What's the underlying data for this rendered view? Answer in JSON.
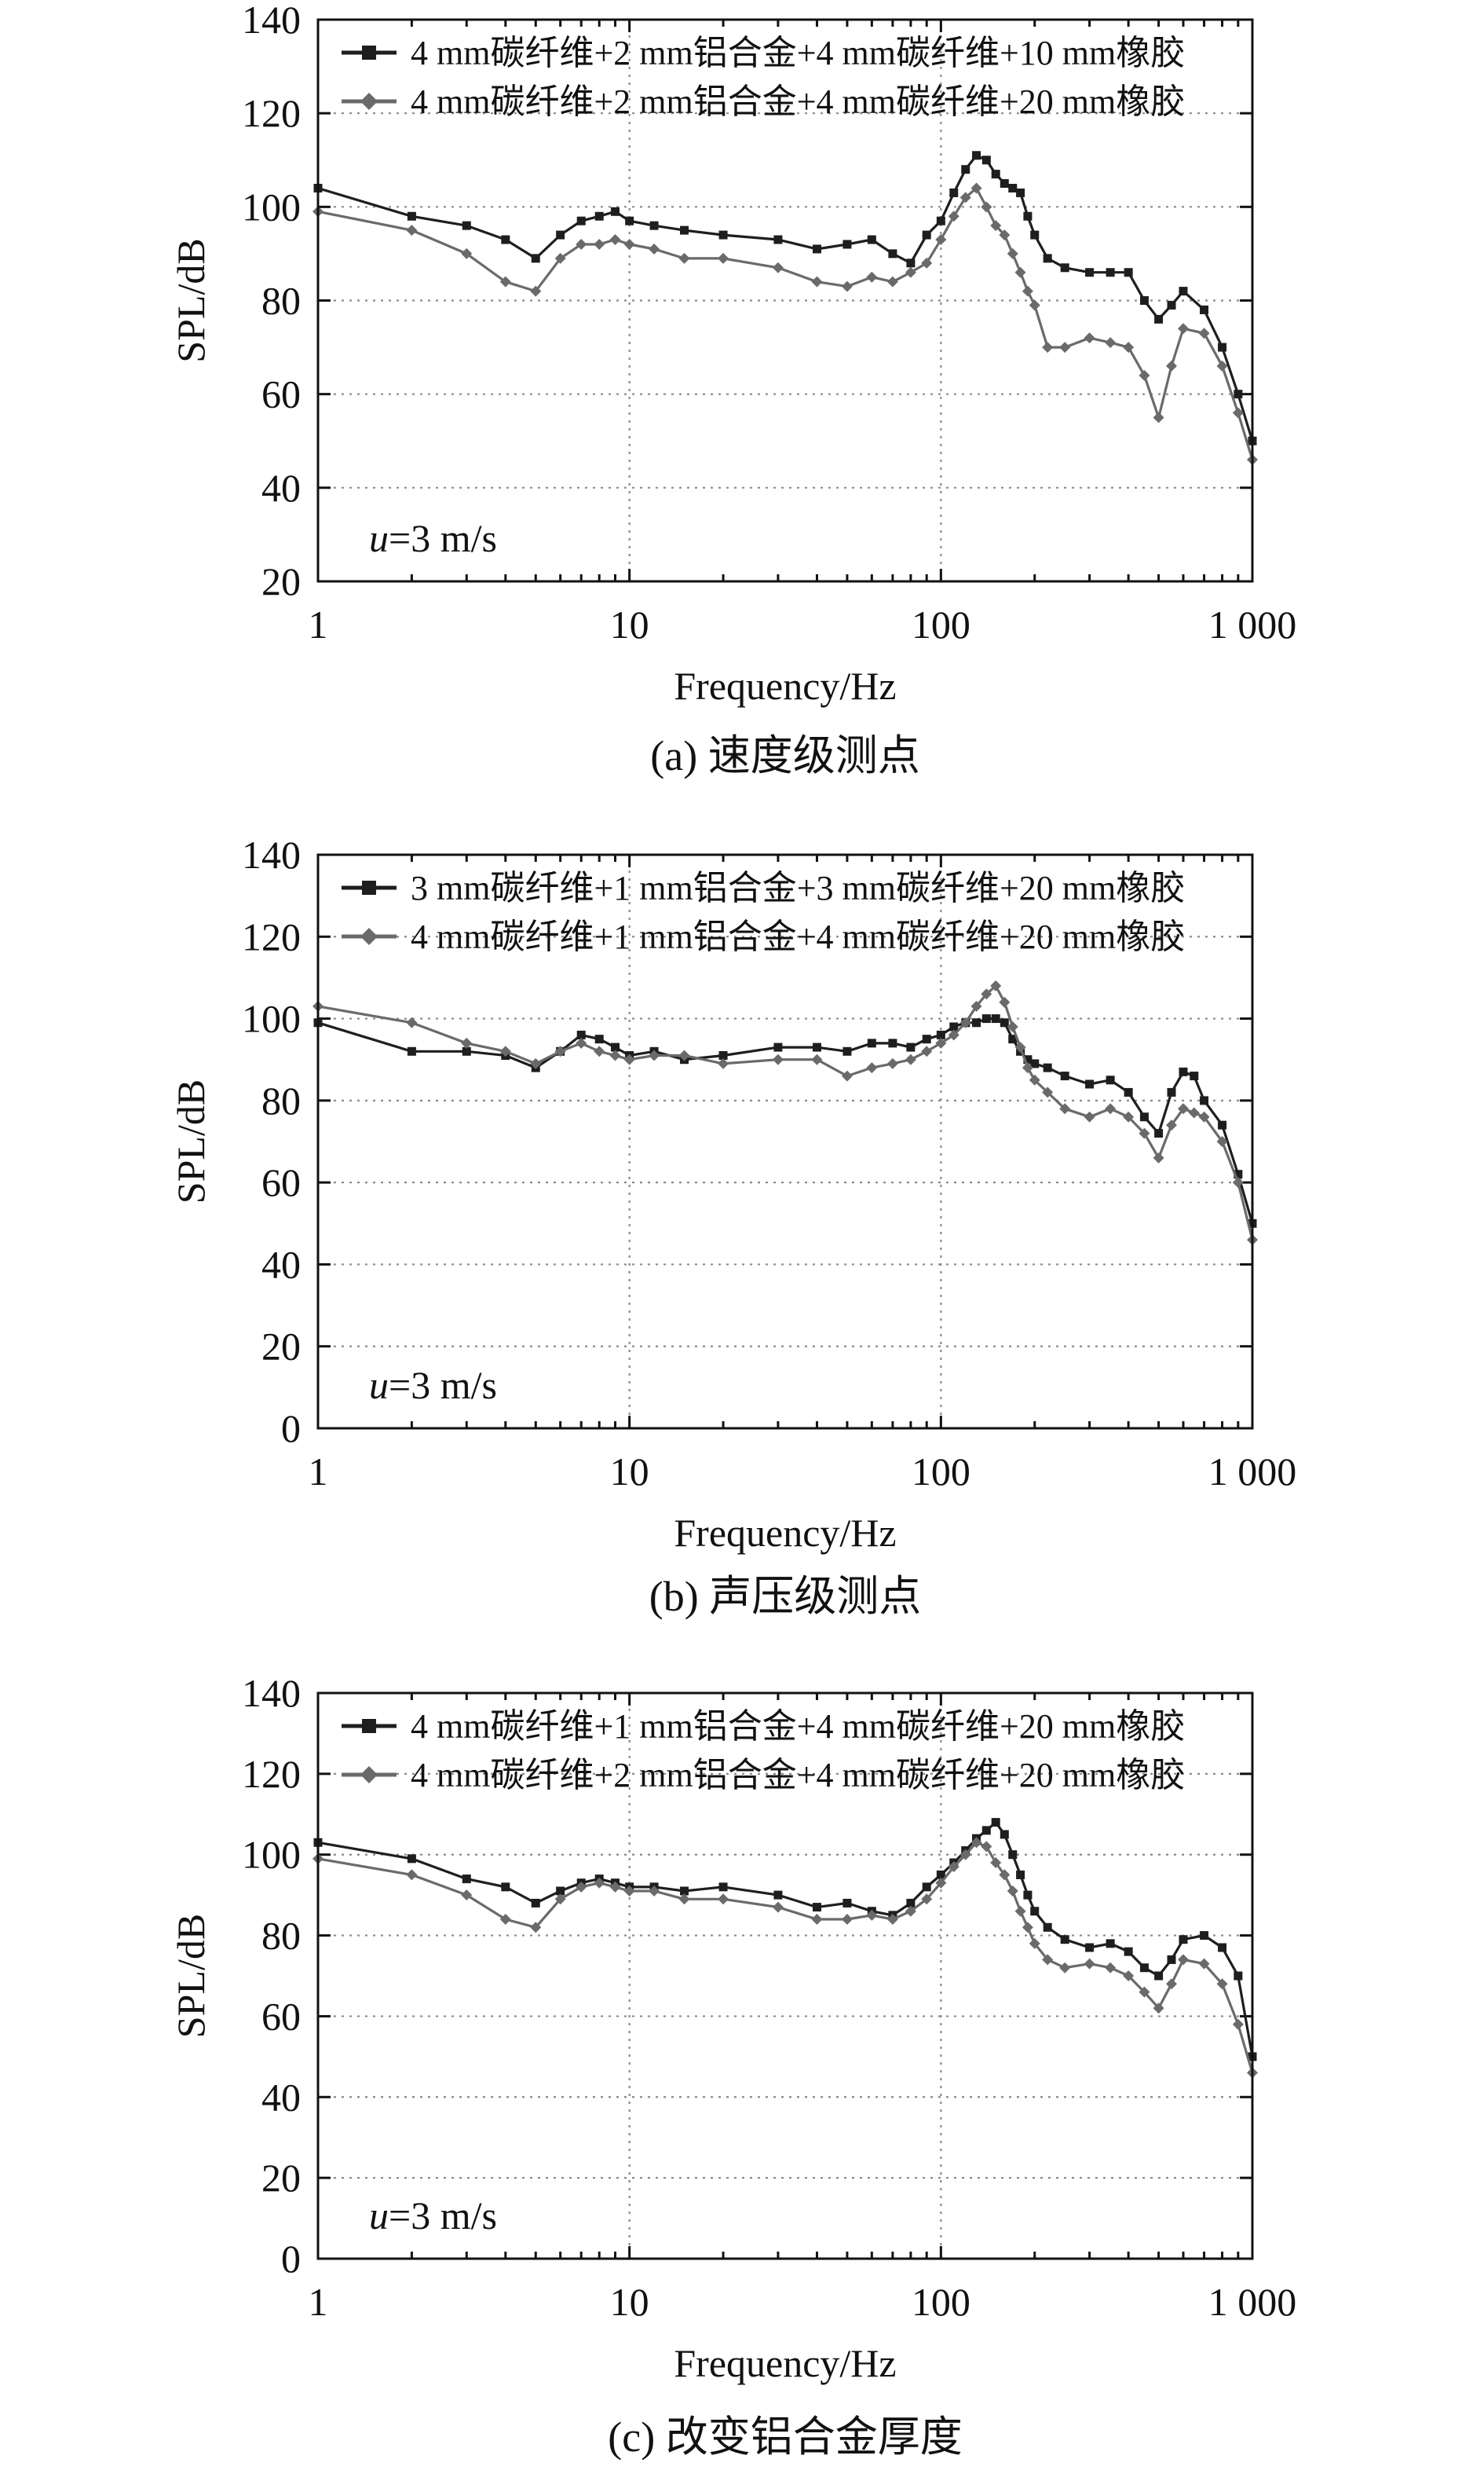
{
  "chart_data": [
    {
      "type": "line",
      "caption": "(a) 速度级测点",
      "xlabel": "Frequency/Hz",
      "ylabel": "SPL/dB",
      "xscale": "log",
      "xlim": [
        1,
        1000
      ],
      "ylim": [
        20,
        140
      ],
      "xticks": [
        1,
        10,
        100,
        1000
      ],
      "xtick_labels": [
        "1",
        "10",
        "100",
        "1 000"
      ],
      "yticks": [
        20,
        40,
        60,
        80,
        100,
        120,
        140
      ],
      "annotation": {
        "var": "u",
        "rest": "=3 m/s"
      },
      "legend_position": "top-left",
      "series": [
        {
          "name": "4 mm碳纤维+2 mm铝合金+4 mm碳纤维+10 mm橡胶",
          "color": "#1e1e1e",
          "marker": "square",
          "x": [
            1,
            2,
            3,
            4,
            5,
            6,
            7,
            8,
            9,
            10,
            12,
            15,
            20,
            30,
            40,
            50,
            60,
            70,
            80,
            90,
            100,
            110,
            120,
            130,
            140,
            150,
            160,
            170,
            180,
            190,
            200,
            220,
            250,
            300,
            350,
            400,
            450,
            500,
            550,
            600,
            700,
            800,
            900,
            1000
          ],
          "y": [
            104,
            98,
            96,
            93,
            89,
            94,
            97,
            98,
            99,
            97,
            96,
            95,
            94,
            93,
            91,
            92,
            93,
            90,
            88,
            94,
            97,
            103,
            108,
            111,
            110,
            107,
            105,
            104,
            103,
            98,
            94,
            89,
            87,
            86,
            86,
            86,
            80,
            76,
            79,
            82,
            78,
            70,
            60,
            50
          ]
        },
        {
          "name": "4 mm碳纤维+2 mm铝合金+4 mm碳纤维+20 mm橡胶",
          "color": "#6a6a6a",
          "marker": "diamond",
          "x": [
            1,
            2,
            3,
            4,
            5,
            6,
            7,
            8,
            9,
            10,
            12,
            15,
            20,
            30,
            40,
            50,
            60,
            70,
            80,
            90,
            100,
            110,
            120,
            130,
            140,
            150,
            160,
            170,
            180,
            190,
            200,
            220,
            250,
            300,
            350,
            400,
            450,
            500,
            550,
            600,
            700,
            800,
            900,
            1000
          ],
          "y": [
            99,
            95,
            90,
            84,
            82,
            89,
            92,
            92,
            93,
            92,
            91,
            89,
            89,
            87,
            84,
            83,
            85,
            84,
            86,
            88,
            93,
            98,
            102,
            104,
            100,
            96,
            94,
            90,
            86,
            82,
            79,
            70,
            70,
            72,
            71,
            70,
            64,
            55,
            66,
            74,
            73,
            66,
            56,
            46
          ]
        }
      ]
    },
    {
      "type": "line",
      "caption": "(b) 声压级测点",
      "xlabel": "Frequency/Hz",
      "ylabel": "SPL/dB",
      "xscale": "log",
      "xlim": [
        1,
        1000
      ],
      "ylim": [
        0,
        140
      ],
      "xticks": [
        1,
        10,
        100,
        1000
      ],
      "xtick_labels": [
        "1",
        "10",
        "100",
        "1 000"
      ],
      "yticks": [
        0,
        20,
        40,
        60,
        80,
        100,
        120,
        140
      ],
      "annotation": {
        "var": "u",
        "rest": "=3 m/s"
      },
      "legend_position": "top-left",
      "series": [
        {
          "name": "3 mm碳纤维+1 mm铝合金+3 mm碳纤维+20 mm橡胶",
          "color": "#1e1e1e",
          "marker": "square",
          "x": [
            1,
            2,
            3,
            4,
            5,
            6,
            7,
            8,
            9,
            10,
            12,
            15,
            20,
            30,
            40,
            50,
            60,
            70,
            80,
            90,
            100,
            110,
            120,
            130,
            140,
            150,
            160,
            170,
            180,
            190,
            200,
            220,
            250,
            300,
            350,
            400,
            450,
            500,
            550,
            600,
            650,
            700,
            800,
            900,
            1000
          ],
          "y": [
            99,
            92,
            92,
            91,
            88,
            92,
            96,
            95,
            93,
            91,
            92,
            90,
            91,
            93,
            93,
            92,
            94,
            94,
            93,
            95,
            96,
            98,
            99,
            99,
            100,
            100,
            99,
            95,
            92,
            90,
            89,
            88,
            86,
            84,
            85,
            82,
            76,
            72,
            82,
            87,
            86,
            80,
            74,
            62,
            50
          ]
        },
        {
          "name": "4 mm碳纤维+1 mm铝合金+4 mm碳纤维+20 mm橡胶",
          "color": "#6a6a6a",
          "marker": "diamond",
          "x": [
            1,
            2,
            3,
            4,
            5,
            6,
            7,
            8,
            9,
            10,
            12,
            15,
            20,
            30,
            40,
            50,
            60,
            70,
            80,
            90,
            100,
            110,
            120,
            130,
            140,
            150,
            160,
            170,
            180,
            190,
            200,
            220,
            250,
            300,
            350,
            400,
            450,
            500,
            550,
            600,
            650,
            700,
            800,
            900,
            1000
          ],
          "y": [
            103,
            99,
            94,
            92,
            89,
            92,
            94,
            92,
            91,
            90,
            91,
            91,
            89,
            90,
            90,
            86,
            88,
            89,
            90,
            92,
            94,
            96,
            99,
            103,
            106,
            108,
            104,
            98,
            93,
            88,
            85,
            82,
            78,
            76,
            78,
            76,
            72,
            66,
            74,
            78,
            77,
            76,
            70,
            60,
            46
          ]
        }
      ]
    },
    {
      "type": "line",
      "caption": "(c) 改变铝合金厚度",
      "xlabel": "Frequency/Hz",
      "ylabel": "SPL/dB",
      "xscale": "log",
      "xlim": [
        1,
        1000
      ],
      "ylim": [
        0,
        140
      ],
      "xticks": [
        1,
        10,
        100,
        1000
      ],
      "xtick_labels": [
        "1",
        "10",
        "100",
        "1 000"
      ],
      "yticks": [
        0,
        20,
        40,
        60,
        80,
        100,
        120,
        140
      ],
      "annotation": {
        "var": "u",
        "rest": "=3 m/s"
      },
      "legend_position": "top-left",
      "series": [
        {
          "name": "4 mm碳纤维+1 mm铝合金+4 mm碳纤维+20 mm橡胶",
          "color": "#1e1e1e",
          "marker": "square",
          "x": [
            1,
            2,
            3,
            4,
            5,
            6,
            7,
            8,
            9,
            10,
            12,
            15,
            20,
            30,
            40,
            50,
            60,
            70,
            80,
            90,
            100,
            110,
            120,
            130,
            140,
            150,
            160,
            170,
            180,
            190,
            200,
            220,
            250,
            300,
            350,
            400,
            450,
            500,
            550,
            600,
            700,
            800,
            900,
            1000
          ],
          "y": [
            103,
            99,
            94,
            92,
            88,
            91,
            93,
            94,
            93,
            92,
            92,
            91,
            92,
            90,
            87,
            88,
            86,
            85,
            88,
            92,
            95,
            98,
            101,
            104,
            106,
            108,
            105,
            100,
            95,
            90,
            86,
            82,
            79,
            77,
            78,
            76,
            72,
            70,
            74,
            79,
            80,
            77,
            70,
            50
          ]
        },
        {
          "name": "4 mm碳纤维+2 mm铝合金+4 mm碳纤维+20 mm橡胶",
          "color": "#6a6a6a",
          "marker": "diamond",
          "x": [
            1,
            2,
            3,
            4,
            5,
            6,
            7,
            8,
            9,
            10,
            12,
            15,
            20,
            30,
            40,
            50,
            60,
            70,
            80,
            90,
            100,
            110,
            120,
            130,
            140,
            150,
            160,
            170,
            180,
            190,
            200,
            220,
            250,
            300,
            350,
            400,
            450,
            500,
            550,
            600,
            700,
            800,
            900,
            1000
          ],
          "y": [
            99,
            95,
            90,
            84,
            82,
            89,
            92,
            93,
            92,
            91,
            91,
            89,
            89,
            87,
            84,
            84,
            85,
            84,
            86,
            89,
            93,
            97,
            100,
            103,
            102,
            98,
            95,
            91,
            86,
            82,
            78,
            74,
            72,
            73,
            72,
            70,
            66,
            62,
            68,
            74,
            73,
            68,
            58,
            46
          ]
        }
      ]
    }
  ]
}
